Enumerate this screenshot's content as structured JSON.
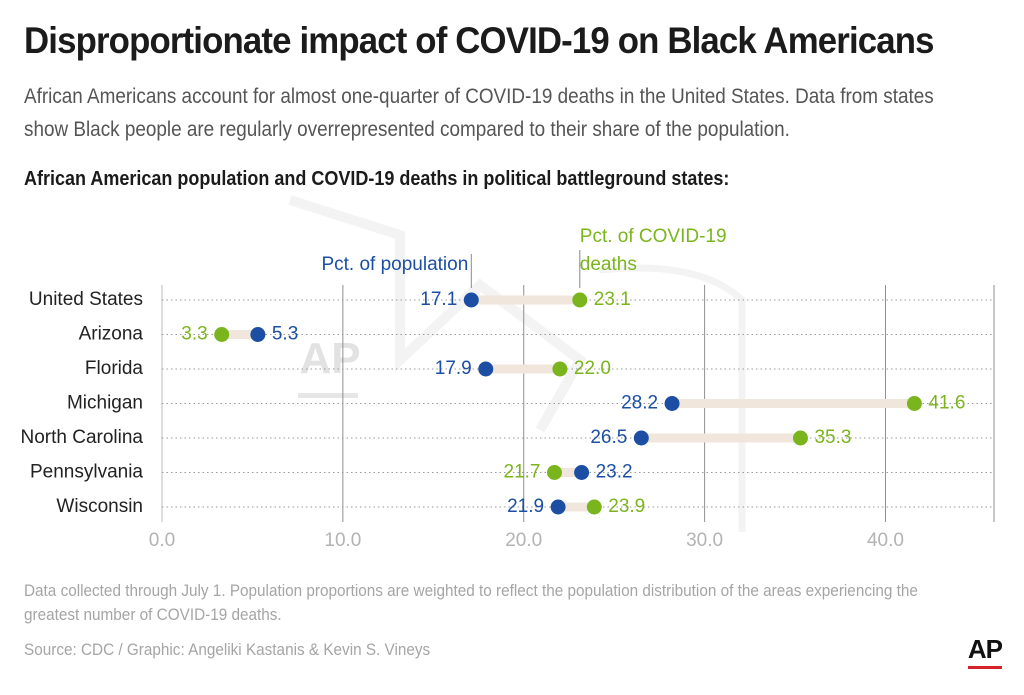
{
  "header": {
    "title": "Disproportionate impact of COVID-19 on Black Americans",
    "subtitle_line1": "African Americans account for almost one-quarter of COVID-19 deaths in the United States. Data from states",
    "subtitle_line2": "show Black people are regularly overrepresented compared to their share of the population.",
    "section_title": "African American population and COVID-19 deaths in political battleground states:"
  },
  "footer": {
    "note_line1": "Data collected through July 1. Population proportions are weighted to reflect the population distribution of the areas experiencing the",
    "note_line2": "greatest number of COVID-19 deaths.",
    "source": "Source: CDC / Graphic: Angeliki Kastanis & Kevin S. Vineys",
    "logo": "AP",
    "watermark": "AP"
  },
  "colors": {
    "population": "#1c4fa3",
    "deaths": "#7ab51d",
    "connector": "#f1e6dc",
    "grid": "#8f8f8f",
    "tick": "#b3b3b3",
    "state_label": "#222222"
  },
  "chart_data": {
    "type": "dumbbell",
    "title": "African American population and COVID-19 deaths in political battleground states:",
    "categories": [
      "United States",
      "Arizona",
      "Florida",
      "Michigan",
      "North Carolina",
      "Pennsylvania",
      "Wisconsin"
    ],
    "series": [
      {
        "name": "Pct. of population",
        "values": [
          17.1,
          5.3,
          17.9,
          28.2,
          26.5,
          23.2,
          21.9
        ]
      },
      {
        "name": "Pct. of COVID-19 deaths",
        "values": [
          23.1,
          3.3,
          22.0,
          41.6,
          35.3,
          21.7,
          23.9
        ]
      }
    ],
    "value_labels": {
      "population": [
        "17.1",
        "5.3",
        "17.9",
        "28.2",
        "26.5",
        "23.2",
        "21.9"
      ],
      "deaths": [
        "23.1",
        "3.3",
        "22.0",
        "41.6",
        "35.3",
        "21.7",
        "23.9"
      ]
    },
    "legend": {
      "population": "Pct. of population",
      "deaths_line1": "Pct. of COVID-19",
      "deaths_line2": "deaths"
    },
    "xlim": [
      0,
      46
    ],
    "xticks": [
      0,
      10,
      20,
      30,
      40
    ],
    "xtick_labels": [
      "0.0",
      "10.0",
      "20.0",
      "30.0",
      "40.0"
    ],
    "grid": "vertical-solid, horizontal-dotted"
  }
}
